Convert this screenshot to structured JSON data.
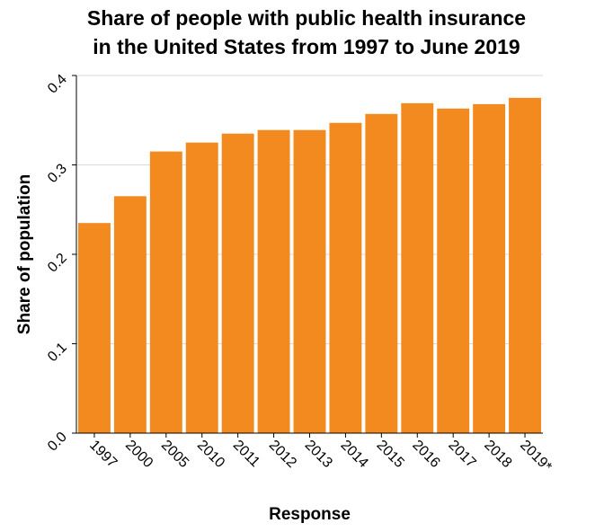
{
  "chart_data": {
    "type": "bar",
    "title_lines": [
      "Share of people with public health insurance",
      "in the United States from 1997 to June 2019"
    ],
    "xlabel": "Response",
    "ylabel": "Share of population",
    "categories": [
      "1997",
      "2000",
      "2005",
      "2010",
      "2011",
      "2012",
      "2013",
      "2014",
      "2015",
      "2016",
      "2017",
      "2018",
      "2019*"
    ],
    "values": [
      0.235,
      0.265,
      0.315,
      0.325,
      0.335,
      0.339,
      0.339,
      0.347,
      0.357,
      0.369,
      0.363,
      0.368,
      0.375
    ],
    "ylim": [
      0,
      0.4
    ],
    "yticks": [
      "0.0",
      "0.1",
      "0.2",
      "0.3",
      "0.4"
    ],
    "grid": true,
    "bar_color": "#f28a1f",
    "grid_color": "#d9d9d9"
  }
}
